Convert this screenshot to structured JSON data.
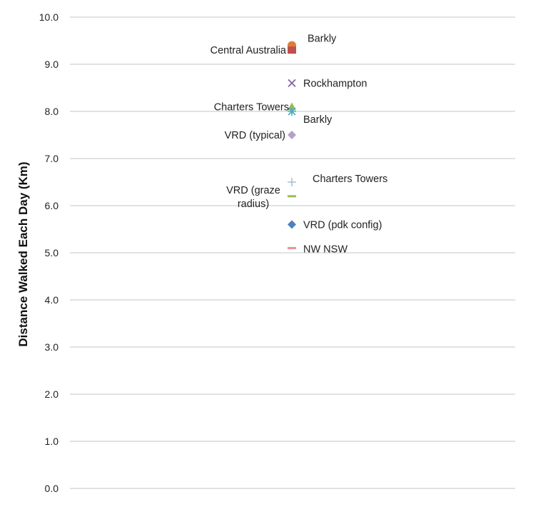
{
  "chart_data": {
    "type": "scatter",
    "ylabel": "Distance Walked Each Day (Km)",
    "ylim": [
      0,
      10
    ],
    "y_ticks": [
      "0.0",
      "1.0",
      "2.0",
      "3.0",
      "4.0",
      "5.0",
      "6.0",
      "7.0",
      "8.0",
      "9.0",
      "10.0"
    ],
    "grid": true,
    "points": [
      {
        "label": "Barkly",
        "y": 9.4,
        "marker": "circle",
        "color": "#e07b39"
      },
      {
        "label": "Central Australia",
        "y": 9.3,
        "marker": "square",
        "color": "#c0504d"
      },
      {
        "label": "Rockhampton",
        "y": 8.6,
        "marker": "x",
        "color": "#8064a2"
      },
      {
        "label": "Charters Towers",
        "y": 8.1,
        "marker": "triangle",
        "color": "#9bbb59"
      },
      {
        "label": "Barkly",
        "y": 8.0,
        "marker": "star",
        "color": "#4bacc6"
      },
      {
        "label": "VRD (typical)",
        "y": 7.5,
        "marker": "diamond",
        "color": "#b3a2c7"
      },
      {
        "label": "Charters Towers",
        "y": 6.5,
        "marker": "plus",
        "color": "#95b3d7"
      },
      {
        "label": "VRD (graze radius)",
        "label_lines": [
          "VRD (graze",
          "radius)"
        ],
        "y": 6.2,
        "marker": "dash",
        "color": "#9bbb59"
      },
      {
        "label": "VRD (pdk config)",
        "y": 5.6,
        "marker": "diamond",
        "color": "#4f81bd"
      },
      {
        "label": "NW NSW",
        "y": 5.1,
        "marker": "dash",
        "color": "#e6958f"
      }
    ]
  }
}
